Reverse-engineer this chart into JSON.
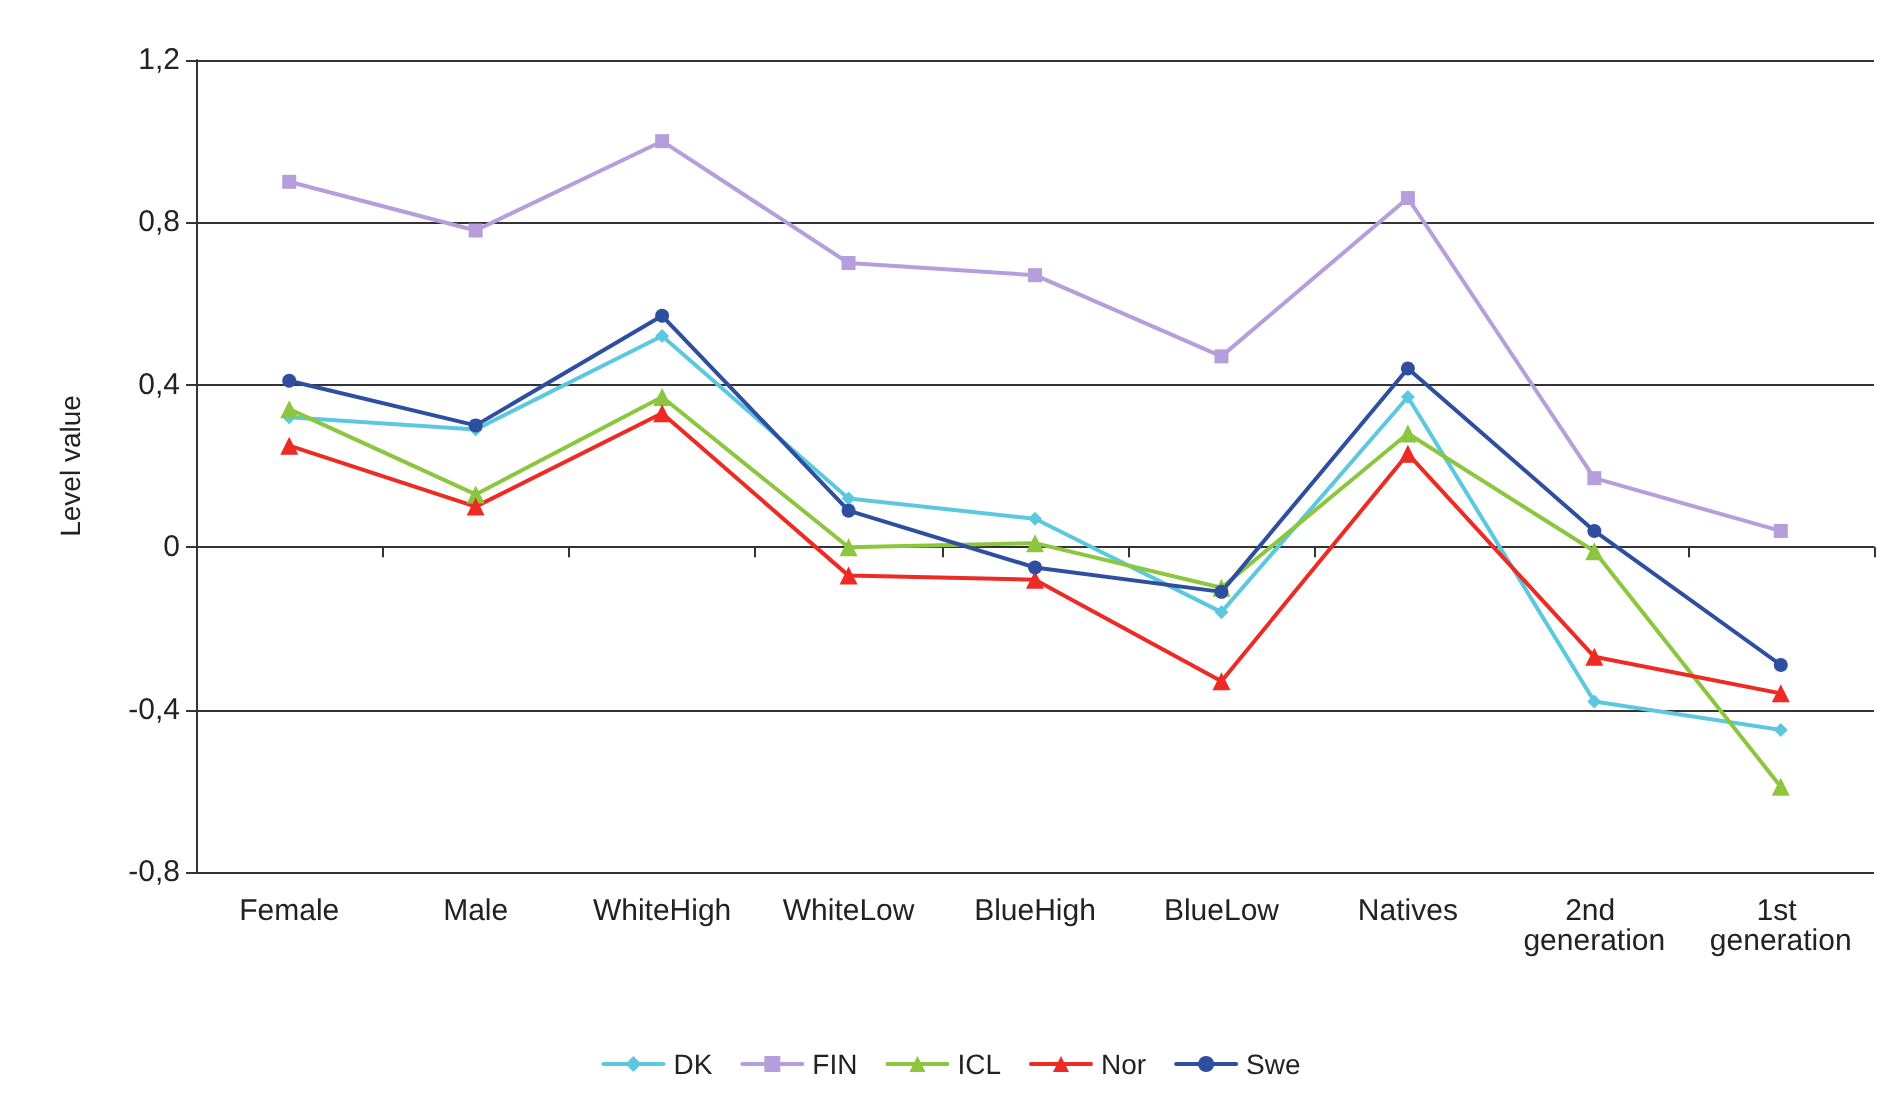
{
  "chart_data": {
    "type": "line",
    "ylabel": "Level value",
    "categories": [
      "Female",
      "Male",
      "WhiteHigh",
      "WhiteLow",
      "BlueHigh",
      "BlueLow",
      "Natives",
      "2nd generation",
      "1st generation"
    ],
    "series": [
      {
        "name": "DK",
        "color": "#5bc8e0",
        "marker": "diamond",
        "values": [
          0.32,
          0.29,
          0.52,
          0.12,
          0.07,
          -0.16,
          0.37,
          -0.38,
          -0.45
        ]
      },
      {
        "name": "FIN",
        "color": "#b69ddb",
        "marker": "square",
        "values": [
          0.9,
          0.78,
          1.0,
          0.7,
          0.67,
          0.47,
          0.86,
          0.17,
          0.04
        ]
      },
      {
        "name": "ICL",
        "color": "#8cc63f",
        "marker": "triangle",
        "values": [
          0.34,
          0.13,
          0.37,
          0.0,
          0.01,
          -0.1,
          0.28,
          -0.01,
          -0.59
        ]
      },
      {
        "name": "Nor",
        "color": "#ee2a24",
        "marker": "triangle",
        "values": [
          0.25,
          0.1,
          0.33,
          -0.07,
          -0.08,
          -0.33,
          0.23,
          -0.27,
          -0.36
        ]
      },
      {
        "name": "Swe",
        "color": "#2e4fa0",
        "marker": "circle",
        "values": [
          0.41,
          0.3,
          0.57,
          0.09,
          -0.05,
          -0.11,
          0.44,
          0.04,
          -0.29
        ]
      }
    ],
    "ylim": [
      -0.8,
      1.2
    ],
    "yticks": [
      {
        "value": -0.8,
        "label": "-0,8"
      },
      {
        "value": -0.4,
        "label": "-0,4"
      },
      {
        "value": 0,
        "label": "0"
      },
      {
        "value": 0.4,
        "label": "0,4"
      },
      {
        "value": 0.8,
        "label": "0,8"
      },
      {
        "value": 1.2,
        "label": "1,2"
      }
    ],
    "grid": "y",
    "legend": "bottom"
  }
}
